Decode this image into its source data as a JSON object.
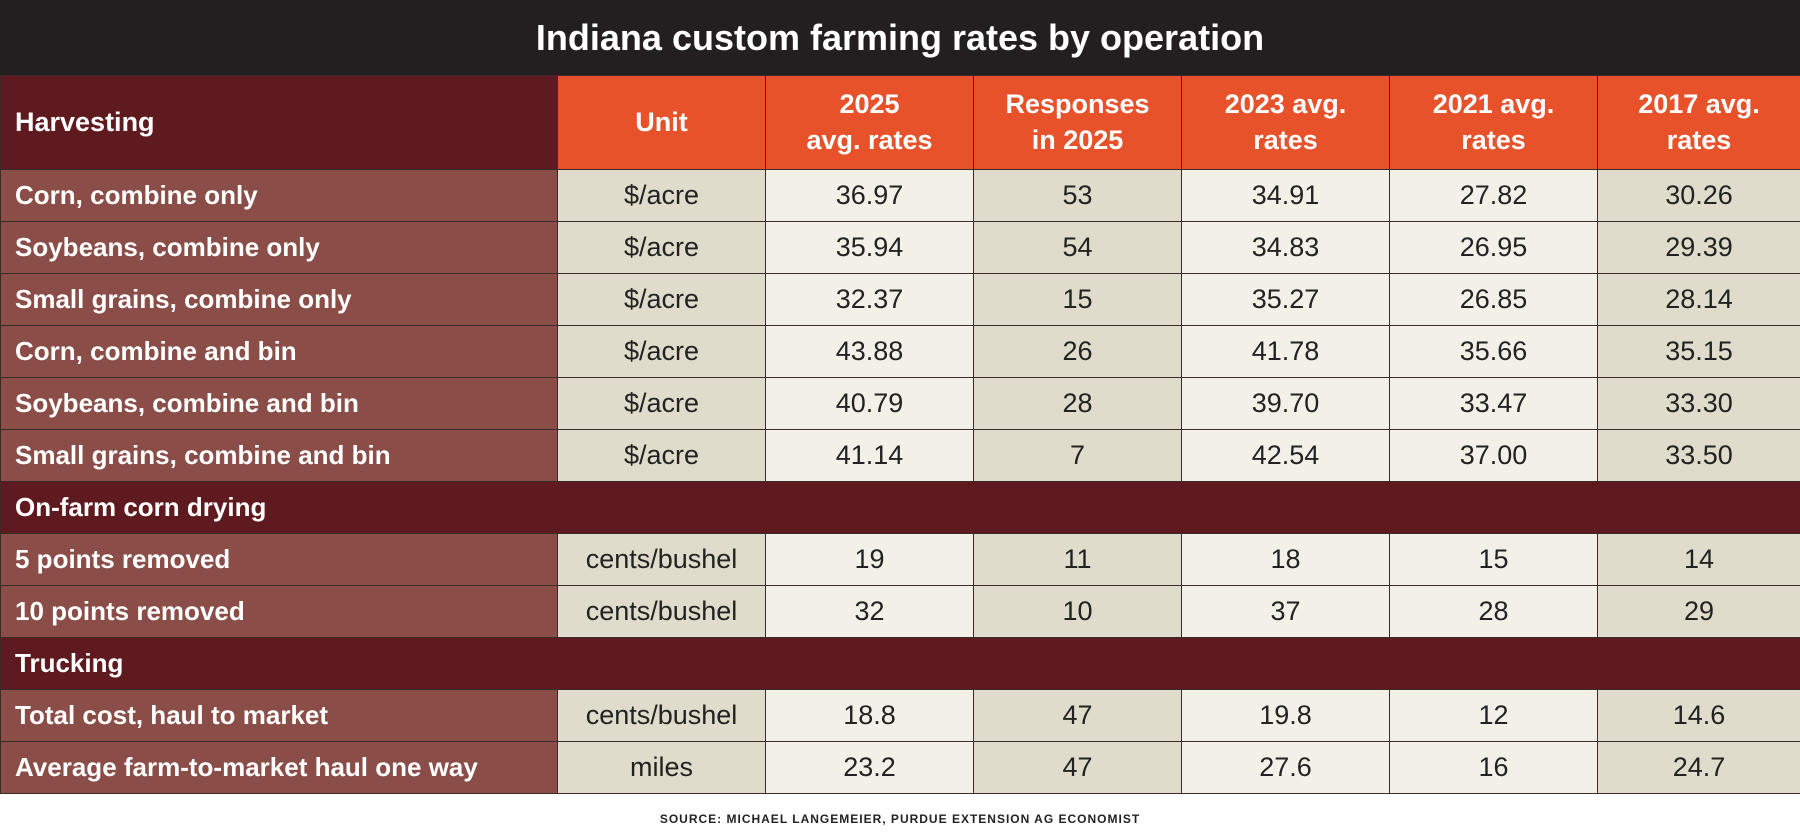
{
  "title": "Indiana custom farming rates by operation",
  "table": {
    "header": [
      "Harvesting",
      "Unit",
      "2025\navg. rates",
      "Responses\nin 2025",
      "2023 avg.\nrates",
      "2021 avg.\nrates",
      "2017 avg.\nrates"
    ],
    "sections": [
      {
        "rows": [
          [
            "Corn, combine only",
            "$/acre",
            "36.97",
            "53",
            "34.91",
            "27.82",
            "30.26"
          ],
          [
            "Soybeans, combine only",
            "$/acre",
            "35.94",
            "54",
            "34.83",
            "26.95",
            "29.39"
          ],
          [
            "Small grains, combine only",
            "$/acre",
            "32.37",
            "15",
            "35.27",
            "26.85",
            "28.14"
          ],
          [
            "Corn, combine and bin",
            "$/acre",
            "43.88",
            "26",
            "41.78",
            "35.66",
            "35.15"
          ],
          [
            "Soybeans, combine and bin",
            "$/acre",
            "40.79",
            "28",
            "39.70",
            "33.47",
            "33.30"
          ],
          [
            "Small grains, combine and bin",
            "$/acre",
            "41.14",
            "7",
            "42.54",
            "37.00",
            "33.50"
          ]
        ]
      },
      {
        "title": "On-farm corn drying",
        "rows": [
          [
            "5 points removed",
            "cents/bushel",
            "19",
            "11",
            "18",
            "15",
            "14"
          ],
          [
            "10 points removed",
            "cents/bushel",
            "32",
            "10",
            "37",
            "28",
            "29"
          ]
        ]
      },
      {
        "title": "Trucking",
        "rows": [
          [
            "Total cost, haul to market",
            "cents/bushel",
            "18.8",
            "47",
            "19.8",
            "12",
            "14.6"
          ],
          [
            "Average farm-to-market haul one way",
            "miles",
            "23.2",
            "47",
            "27.6",
            "16",
            "24.7"
          ]
        ]
      }
    ]
  },
  "source": "SOURCE: MICHAEL LANGEMEIER, PURDUE EXTENSION AG ECONOMIST"
}
